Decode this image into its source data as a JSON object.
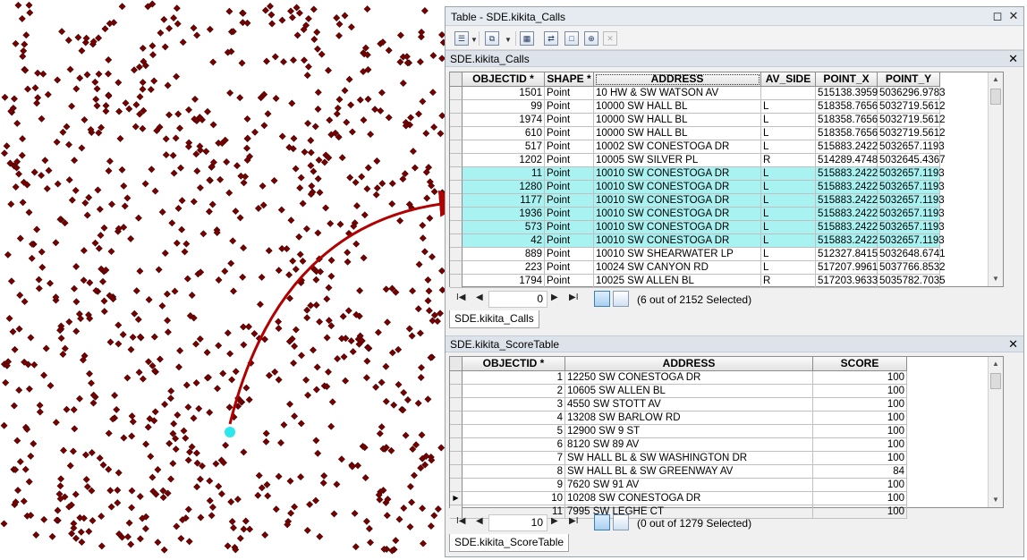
{
  "window": {
    "title": "Table - SDE.kikita_Calls",
    "close_glyph": "✕",
    "restore_glyph": "◻"
  },
  "toolbar": {
    "items": [
      {
        "name": "table-options-icon",
        "glyph": "☰"
      },
      {
        "name": "related-tables-icon",
        "glyph": "⧉"
      },
      {
        "name": "select-by-attributes-icon",
        "glyph": "▦"
      },
      {
        "name": "switch-selection-icon",
        "glyph": "⇄"
      },
      {
        "name": "clear-selection-icon",
        "glyph": "□"
      },
      {
        "name": "zoom-to-selected-icon",
        "glyph": "⊕"
      },
      {
        "name": "delete-selected-icon",
        "glyph": "✕"
      }
    ]
  },
  "calls": {
    "header": "SDE.kikita_Calls",
    "columns": [
      "OBJECTID *",
      "SHAPE *",
      "ADDRESS",
      "AV_SIDE",
      "POINT_X",
      "POINT_Y"
    ],
    "rows": [
      {
        "c": [
          "1501",
          "Point",
          "10 HW & SW WATSON AV",
          "",
          "515138.3959",
          "5036296.9783"
        ],
        "sel": false
      },
      {
        "c": [
          "99",
          "Point",
          "10000 SW HALL BL",
          "L",
          "518358.7656",
          "5032719.5612"
        ],
        "sel": false
      },
      {
        "c": [
          "1974",
          "Point",
          "10000 SW HALL BL",
          "L",
          "518358.7656",
          "5032719.5612"
        ],
        "sel": false
      },
      {
        "c": [
          "610",
          "Point",
          "10000 SW HALL BL",
          "L",
          "518358.7656",
          "5032719.5612"
        ],
        "sel": false
      },
      {
        "c": [
          "517",
          "Point",
          "10002 SW CONESTOGA DR",
          "L",
          "515883.2422",
          "5032657.1193"
        ],
        "sel": false
      },
      {
        "c": [
          "1202",
          "Point",
          "10005 SW SILVER PL",
          "R",
          "514289.4748",
          "5032645.4367"
        ],
        "sel": false
      },
      {
        "c": [
          "11",
          "Point",
          "10010 SW CONESTOGA DR",
          "L",
          "515883.2422",
          "5032657.1193"
        ],
        "sel": true
      },
      {
        "c": [
          "1280",
          "Point",
          "10010 SW CONESTOGA DR",
          "L",
          "515883.2422",
          "5032657.1193"
        ],
        "sel": true
      },
      {
        "c": [
          "1177",
          "Point",
          "10010 SW CONESTOGA DR",
          "L",
          "515883.2422",
          "5032657.1193"
        ],
        "sel": true
      },
      {
        "c": [
          "1936",
          "Point",
          "10010 SW CONESTOGA DR",
          "L",
          "515883.2422",
          "5032657.1193"
        ],
        "sel": true
      },
      {
        "c": [
          "573",
          "Point",
          "10010 SW CONESTOGA DR",
          "L",
          "515883.2422",
          "5032657.1193"
        ],
        "sel": true
      },
      {
        "c": [
          "42",
          "Point",
          "10010 SW CONESTOGA DR",
          "L",
          "515883.2422",
          "5032657.1193"
        ],
        "sel": true
      },
      {
        "c": [
          "889",
          "Point",
          "10010 SW SHEARWATER LP",
          "L",
          "512327.8415",
          "5032648.6741"
        ],
        "sel": false
      },
      {
        "c": [
          "223",
          "Point",
          "10024 SW CANYON RD",
          "L",
          "517207.9961",
          "5037766.8532"
        ],
        "sel": false
      },
      {
        "c": [
          "1794",
          "Point",
          "10025 SW ALLEN BL",
          "R",
          "517203.9633",
          "5035782.7035"
        ],
        "sel": false
      }
    ],
    "record": "0",
    "count_text": "(6 out of 2152 Selected)",
    "tab": "SDE.kikita_Calls"
  },
  "score": {
    "header": "SDE.kikita_ScoreTable",
    "columns": [
      "OBJECTID *",
      "ADDRESS",
      "SCORE"
    ],
    "rows": [
      {
        "c": [
          "1",
          "12250 SW CONESTOGA DR",
          "100"
        ]
      },
      {
        "c": [
          "2",
          "10605 SW ALLEN BL",
          "100"
        ]
      },
      {
        "c": [
          "3",
          "4550 SW STOTT AV",
          "100"
        ]
      },
      {
        "c": [
          "4",
          "13208 SW BARLOW RD",
          "100"
        ]
      },
      {
        "c": [
          "5",
          "12900 SW 9 ST",
          "100"
        ]
      },
      {
        "c": [
          "6",
          "8120 SW 89 AV",
          "100"
        ]
      },
      {
        "c": [
          "7",
          "SW HALL BL & SW WASHINGTON DR",
          "100"
        ]
      },
      {
        "c": [
          "8",
          "SW HALL BL & SW GREENWAY AV",
          "84"
        ]
      },
      {
        "c": [
          "9",
          "7620 SW 91 AV",
          "100"
        ]
      },
      {
        "c": [
          "10",
          "10208 SW CONESTOGA DR",
          "100"
        ]
      },
      {
        "c": [
          "11",
          "7995 SW LEGHE CT",
          "100"
        ]
      }
    ],
    "current_row_index": 9,
    "record": "10",
    "count_text": "(0 out of 1279 Selected)",
    "tab": "SDE.kikita_ScoreTable"
  },
  "nav": {
    "first": "I◀",
    "prev": "◀",
    "next": "▶",
    "last": "▶I"
  },
  "colors": {
    "point": "#7a0000",
    "highlight": "#2de7ee",
    "arrow": "#b00000",
    "selected_row": "#a8f2f2"
  }
}
